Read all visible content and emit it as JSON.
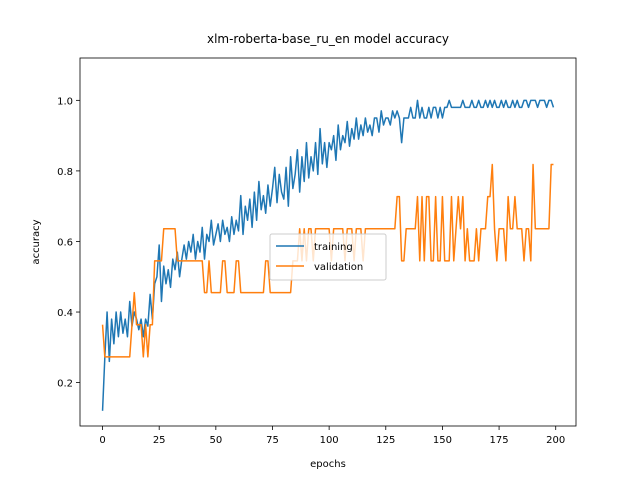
{
  "chart_data": {
    "type": "line",
    "title": "xlm-roberta-base_ru_en model accuracy",
    "xlabel": "epochs",
    "ylabel": "accuracy",
    "x": [
      0,
      1,
      2,
      3,
      4,
      5,
      6,
      7,
      8,
      9,
      10,
      11,
      12,
      13,
      14,
      15,
      16,
      17,
      18,
      19,
      20,
      21,
      22,
      23,
      24,
      25,
      26,
      27,
      28,
      29,
      30,
      31,
      32,
      33,
      34,
      35,
      36,
      37,
      38,
      39,
      40,
      41,
      42,
      43,
      44,
      45,
      46,
      47,
      48,
      49,
      50,
      51,
      52,
      53,
      54,
      55,
      56,
      57,
      58,
      59,
      60,
      61,
      62,
      63,
      64,
      65,
      66,
      67,
      68,
      69,
      70,
      71,
      72,
      73,
      74,
      75,
      76,
      77,
      78,
      79,
      80,
      81,
      82,
      83,
      84,
      85,
      86,
      87,
      88,
      89,
      90,
      91,
      92,
      93,
      94,
      95,
      96,
      97,
      98,
      99,
      100,
      101,
      102,
      103,
      104,
      105,
      106,
      107,
      108,
      109,
      110,
      111,
      112,
      113,
      114,
      115,
      116,
      117,
      118,
      119,
      120,
      121,
      122,
      123,
      124,
      125,
      126,
      127,
      128,
      129,
      130,
      131,
      132,
      133,
      134,
      135,
      136,
      137,
      138,
      139,
      140,
      141,
      142,
      143,
      144,
      145,
      146,
      147,
      148,
      149,
      150,
      151,
      152,
      153,
      154,
      155,
      156,
      157,
      158,
      159,
      160,
      161,
      162,
      163,
      164,
      165,
      166,
      167,
      168,
      169,
      170,
      171,
      172,
      173,
      174,
      175,
      176,
      177,
      178,
      179,
      180,
      181,
      182,
      183,
      184,
      185,
      186,
      187,
      188,
      189,
      190,
      191,
      192,
      193,
      194,
      195,
      196,
      197,
      198,
      199
    ],
    "series": [
      {
        "name": "training",
        "color": "#1f77b4",
        "values": [
          0.12,
          0.27,
          0.4,
          0.26,
          0.38,
          0.31,
          0.4,
          0.33,
          0.4,
          0.34,
          0.38,
          0.33,
          0.43,
          0.36,
          0.4,
          0.38,
          0.35,
          0.38,
          0.33,
          0.38,
          0.36,
          0.45,
          0.38,
          0.48,
          0.5,
          0.59,
          0.43,
          0.53,
          0.48,
          0.52,
          0.47,
          0.55,
          0.52,
          0.57,
          0.5,
          0.55,
          0.59,
          0.55,
          0.6,
          0.57,
          0.62,
          0.55,
          0.6,
          0.57,
          0.64,
          0.55,
          0.62,
          0.6,
          0.66,
          0.59,
          0.62,
          0.65,
          0.6,
          0.66,
          0.62,
          0.64,
          0.6,
          0.67,
          0.62,
          0.66,
          0.63,
          0.73,
          0.62,
          0.7,
          0.66,
          0.72,
          0.64,
          0.74,
          0.66,
          0.77,
          0.69,
          0.73,
          0.68,
          0.76,
          0.7,
          0.75,
          0.81,
          0.71,
          0.79,
          0.74,
          0.72,
          0.81,
          0.7,
          0.84,
          0.75,
          0.79,
          0.86,
          0.74,
          0.84,
          0.77,
          0.88,
          0.78,
          0.84,
          0.8,
          0.88,
          0.79,
          0.92,
          0.82,
          0.88,
          0.81,
          0.88,
          0.86,
          0.9,
          0.83,
          0.93,
          0.86,
          0.9,
          0.88,
          0.94,
          0.87,
          0.92,
          0.89,
          0.95,
          0.89,
          0.93,
          0.9,
          0.95,
          0.91,
          0.93,
          0.9,
          0.95,
          0.95,
          0.91,
          0.97,
          0.93,
          0.95,
          0.95,
          0.93,
          0.97,
          0.95,
          0.97,
          0.95,
          0.88,
          0.95,
          0.95,
          0.95,
          0.98,
          0.95,
          0.95,
          1.0,
          0.95,
          0.98,
          0.95,
          0.95,
          0.98,
          0.95,
          0.98,
          0.98,
          0.95,
          0.98,
          0.95,
          0.98,
          0.98,
          1.0,
          0.98,
          0.98,
          0.98,
          0.98,
          0.98,
          1.0,
          0.98,
          0.98,
          0.98,
          1.0,
          0.98,
          0.98,
          1.0,
          0.98,
          0.98,
          1.0,
          0.98,
          1.0,
          0.98,
          1.0,
          0.98,
          0.98,
          1.0,
          0.98,
          1.0,
          0.98,
          0.98,
          1.0,
          0.98,
          1.0,
          0.98,
          0.98,
          1.0,
          1.0,
          0.98,
          1.0,
          1.0,
          1.0,
          0.98,
          1.0,
          1.0,
          1.0,
          0.98,
          1.0,
          1.0,
          0.98
        ]
      },
      {
        "name": "validation",
        "color": "#ff7f0e",
        "values": [
          0.364,
          0.273,
          0.273,
          0.273,
          0.273,
          0.273,
          0.273,
          0.273,
          0.273,
          0.273,
          0.273,
          0.273,
          0.273,
          0.364,
          0.455,
          0.364,
          0.364,
          0.364,
          0.273,
          0.364,
          0.273,
          0.364,
          0.364,
          0.545,
          0.545,
          0.545,
          0.545,
          0.636,
          0.636,
          0.636,
          0.636,
          0.636,
          0.636,
          0.545,
          0.545,
          0.545,
          0.545,
          0.545,
          0.545,
          0.545,
          0.545,
          0.545,
          0.545,
          0.545,
          0.545,
          0.455,
          0.455,
          0.545,
          0.455,
          0.455,
          0.455,
          0.455,
          0.455,
          0.545,
          0.545,
          0.455,
          0.455,
          0.455,
          0.455,
          0.545,
          0.545,
          0.455,
          0.455,
          0.455,
          0.455,
          0.455,
          0.455,
          0.455,
          0.455,
          0.455,
          0.455,
          0.455,
          0.545,
          0.545,
          0.455,
          0.455,
          0.455,
          0.455,
          0.455,
          0.455,
          0.455,
          0.455,
          0.455,
          0.455,
          0.545,
          0.545,
          0.545,
          0.636,
          0.545,
          0.636,
          0.545,
          0.636,
          0.636,
          0.545,
          0.636,
          0.636,
          0.636,
          0.636,
          0.636,
          0.636,
          0.636,
          0.545,
          0.636,
          0.636,
          0.636,
          0.636,
          0.636,
          0.545,
          0.636,
          0.636,
          0.636,
          0.545,
          0.636,
          0.636,
          0.636,
          0.545,
          0.636,
          0.636,
          0.636,
          0.636,
          0.636,
          0.636,
          0.636,
          0.636,
          0.636,
          0.636,
          0.636,
          0.636,
          0.636,
          0.636,
          0.727,
          0.727,
          0.545,
          0.545,
          0.636,
          0.636,
          0.636,
          0.636,
          0.636,
          0.727,
          0.545,
          0.727,
          0.545,
          0.727,
          0.727,
          0.545,
          0.545,
          0.727,
          0.545,
          0.545,
          0.727,
          0.545,
          0.545,
          0.545,
          0.727,
          0.545,
          0.636,
          0.727,
          0.636,
          0.727,
          0.545,
          0.636,
          0.545,
          0.545,
          0.545,
          0.636,
          0.545,
          0.636,
          0.636,
          0.636,
          0.727,
          0.727,
          0.818,
          0.636,
          0.545,
          0.636,
          0.636,
          0.636,
          0.545,
          0.727,
          0.636,
          0.636,
          0.727,
          0.636,
          0.636,
          0.636,
          0.545,
          0.636,
          0.636,
          0.545,
          0.818,
          0.636,
          0.636,
          0.636,
          0.636,
          0.636,
          0.636,
          0.636,
          0.818,
          0.818
        ]
      }
    ],
    "xlim": [
      -9.95,
      208.95
    ],
    "ylim": [
      0.077,
      1.12
    ],
    "xticks": [
      0,
      25,
      50,
      75,
      100,
      125,
      150,
      175,
      200
    ],
    "yticks": [
      0.2,
      0.4,
      0.6,
      0.8,
      {
        "value": 1,
        "label": "1.0"
      }
    ],
    "legend": "center",
    "grid": false
  }
}
